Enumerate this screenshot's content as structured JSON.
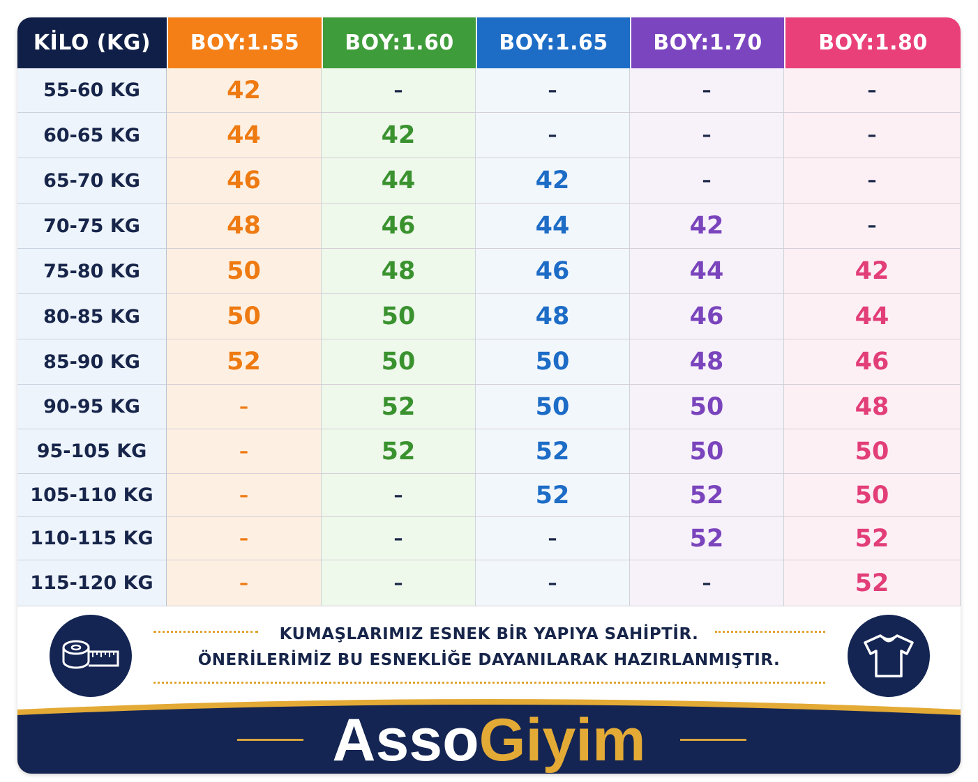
{
  "header": {
    "kilo_label": "KİLO (KG)",
    "columns": [
      {
        "label": "BOY:1.55",
        "color": "#f47f16",
        "text_color": "#ee7a12",
        "tint": "#fdf0e2"
      },
      {
        "label": "BOY:1.60",
        "color": "#3f9c3a",
        "text_color": "#3a922f",
        "tint": "#eef8eb"
      },
      {
        "label": "BOY:1.65",
        "color": "#1d6cc6",
        "text_color": "#1d6cc6",
        "tint": "#f2f7fc"
      },
      {
        "label": "BOY:1.70",
        "color": "#7b45c0",
        "text_color": "#7a44bc",
        "tint": "#f7f1fa"
      },
      {
        "label": "BOY:1.80",
        "color": "#e9407a",
        "text_color": "#e23e78",
        "tint": "#fcf0f4"
      }
    ],
    "kilo_color": "#0f1f47"
  },
  "rows": [
    {
      "kilo": "55-60 KG",
      "values": [
        "42",
        "–",
        "–",
        "–",
        "–"
      ]
    },
    {
      "kilo": "60-65 KG",
      "values": [
        "44",
        "42",
        "–",
        "–",
        "–"
      ]
    },
    {
      "kilo": "65-70 KG",
      "values": [
        "46",
        "44",
        "42",
        "–",
        "–"
      ]
    },
    {
      "kilo": "70-75 KG",
      "values": [
        "48",
        "46",
        "44",
        "42",
        "–"
      ]
    },
    {
      "kilo": "75-80 KG",
      "values": [
        "50",
        "48",
        "46",
        "44",
        "42"
      ]
    },
    {
      "kilo": "80-85 KG",
      "values": [
        "50",
        "50",
        "48",
        "46",
        "44"
      ]
    },
    {
      "kilo": "85-90 KG",
      "values": [
        "52",
        "50",
        "50",
        "48",
        "46"
      ]
    },
    {
      "kilo": "90-95 KG",
      "values": [
        "–",
        "52",
        "50",
        "50",
        "48"
      ]
    },
    {
      "kilo": "95-105 KG",
      "values": [
        "–",
        "52",
        "52",
        "50",
        "50"
      ]
    },
    {
      "kilo": "105-110 KG",
      "values": [
        "–",
        "–",
        "52",
        "52",
        "50"
      ]
    },
    {
      "kilo": "110-115 KG",
      "values": [
        "–",
        "–",
        "–",
        "52",
        "52"
      ]
    },
    {
      "kilo": "115-120 KG",
      "values": [
        "–",
        "–",
        "–",
        "–",
        "52"
      ]
    }
  ],
  "note": {
    "line1": "KUMAŞLARIMIZ ESNEK BİR YAPIYA SAHİPTİR.",
    "line2": "ÖNERİLERİMİZ BU ESNEKLİĞE DAYANILARAK HAZIRLANMIŞTIR."
  },
  "icons": {
    "left": "tape-measure-icon",
    "right": "tshirt-icon"
  },
  "brand": {
    "part1": "Asso",
    "part2": "Giyim",
    "band_color": "#142553",
    "accent": "#e3aa36"
  }
}
